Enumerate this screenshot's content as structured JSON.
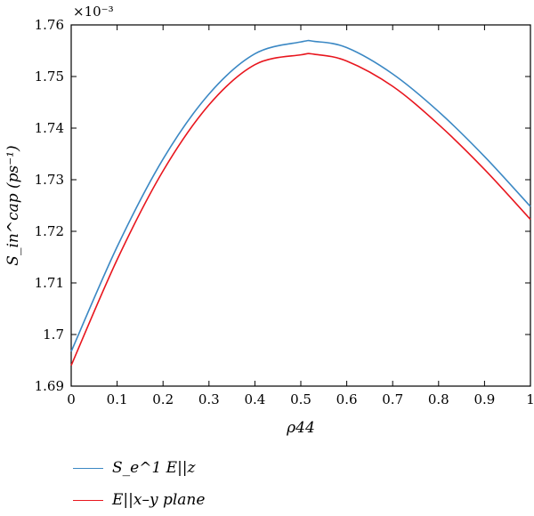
{
  "chart_data": {
    "type": "line",
    "title": "",
    "xlabel": "ρ44",
    "ylabel": "S_in^cap (ps⁻¹)",
    "y_scale_note": "×10⁻³",
    "xlim": [
      0,
      1
    ],
    "ylim": [
      1.69,
      1.76
    ],
    "x_ticks": [
      "0",
      "0.1",
      "0.2",
      "0.3",
      "0.4",
      "0.5",
      "0.6",
      "0.7",
      "0.8",
      "0.9",
      "1"
    ],
    "y_ticks": [
      "1.69",
      "1.7",
      "1.71",
      "1.72",
      "1.73",
      "1.74",
      "1.75",
      "1.76"
    ],
    "grid": false,
    "legend_position": "below",
    "x": [
      0,
      0.1,
      0.2,
      0.3,
      0.4,
      0.5,
      0.53,
      0.6,
      0.7,
      0.8,
      0.9,
      1.0
    ],
    "series": [
      {
        "name": "S_e^1 E||z",
        "color": "#3b88c4",
        "values": [
          1.6967,
          1.717,
          1.734,
          1.7466,
          1.7544,
          1.7567,
          1.7568,
          1.7556,
          1.7505,
          1.7432,
          1.7345,
          1.7248
        ]
      },
      {
        "name": "E||x–y plane",
        "color": "#e8161e",
        "values": [
          1.694,
          1.7145,
          1.7317,
          1.7445,
          1.7523,
          1.7542,
          1.7543,
          1.753,
          1.7481,
          1.7407,
          1.732,
          1.7223
        ]
      }
    ]
  }
}
